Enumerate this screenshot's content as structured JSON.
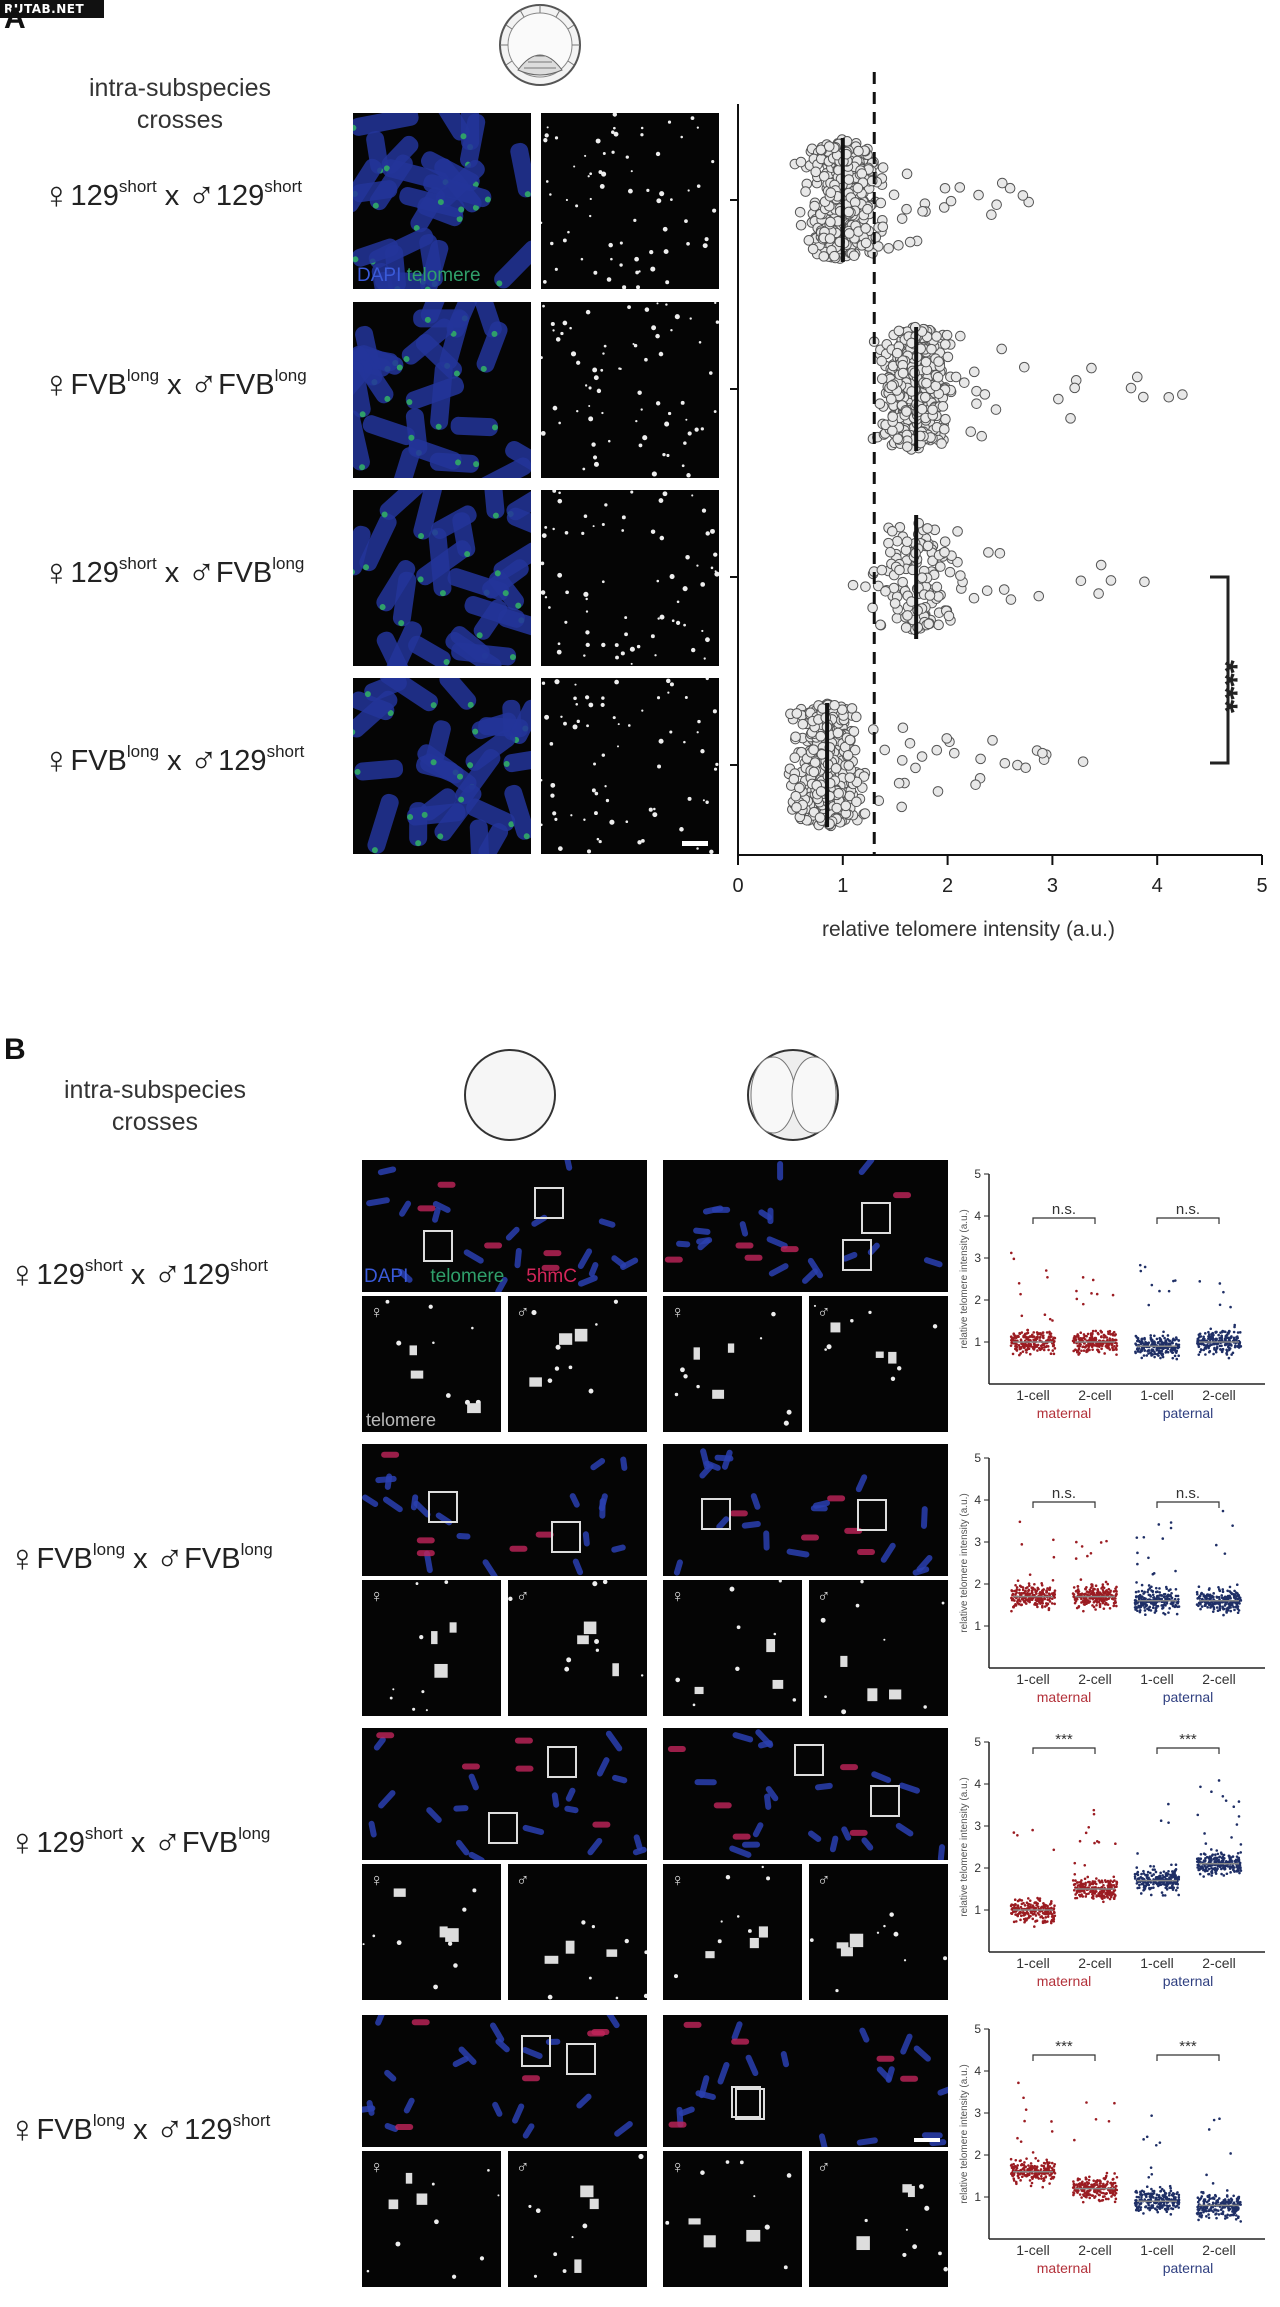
{
  "watermark": "RUTAB.NET",
  "panelA": {
    "letter": "A",
    "heading": "intra-subspecies\ncrosses",
    "crosses": [
      {
        "female": "129",
        "female_sup": "short",
        "male": "129",
        "male_sup": "short"
      },
      {
        "female": "FVB",
        "female_sup": "long",
        "male": "FVB",
        "male_sup": "long"
      },
      {
        "female": "129",
        "female_sup": "short",
        "male": "FVB",
        "male_sup": "long"
      },
      {
        "female": "FVB",
        "female_sup": "long",
        "male": "129",
        "male_sup": "short"
      }
    ],
    "legend": {
      "dapi": "DAPI",
      "telomere": "telomere"
    },
    "significance": "****"
  },
  "panelB": {
    "letter": "B",
    "heading": "intra-subspecies\ncrosses",
    "legend": {
      "dapi": "DAPI",
      "telomere": "telomere",
      "hmc": "5hmC"
    },
    "inset_label": "telomere",
    "female_symbol": "♀",
    "male_symbol": "♂",
    "rows": [
      {
        "female": "129",
        "female_sup": "short",
        "male": "129",
        "male_sup": "short",
        "sig_maternal": "n.s.",
        "sig_paternal": "n.s."
      },
      {
        "female": "FVB",
        "female_sup": "long",
        "male": "FVB",
        "male_sup": "long",
        "sig_maternal": "n.s.",
        "sig_paternal": "n.s."
      },
      {
        "female": "129",
        "female_sup": "short",
        "male": "FVB",
        "male_sup": "long",
        "sig_maternal": "***",
        "sig_paternal": "***"
      },
      {
        "female": "FVB",
        "female_sup": "long",
        "male": "129",
        "male_sup": "short",
        "sig_maternal": "***",
        "sig_paternal": "***"
      }
    ],
    "mini_chart": {
      "ylabel": "relative telomere intensity (a.u.)",
      "yticks": [
        "0",
        "1",
        "2",
        "3",
        "4",
        "5"
      ],
      "xcats": [
        "1-cell",
        "2-cell",
        "1-cell",
        "2-cell"
      ],
      "group_maternal": "maternal",
      "group_paternal": "paternal"
    }
  },
  "chart_data": [
    {
      "type": "scatter",
      "subtype": "swarm",
      "title": "",
      "xlabel": "relative telomere intensity (a.u.)",
      "ylabel": "",
      "xlim": [
        0,
        5
      ],
      "xticks": [
        0,
        1,
        2,
        3,
        4,
        5
      ],
      "reference_line_x": 1.3,
      "categories": [
        "♀129short x ♂129short",
        "♀FVBlong x ♂FVBlong",
        "♀129short x ♂FVBlong",
        "♀FVBlong x ♂129short"
      ],
      "medians": [
        1.0,
        1.7,
        1.7,
        0.85
      ],
      "max_values": [
        2.8,
        4.3,
        4.2,
        3.3
      ],
      "colors": {
        "points": "#555555",
        "fill": "#e8e8e8"
      }
    },
    {
      "type": "scatter",
      "subtype": "strip",
      "ylabel": "relative telomere intensity (a.u.)",
      "ylim": [
        0,
        5
      ],
      "categories": [
        "1-cell maternal",
        "2-cell maternal",
        "1-cell paternal",
        "2-cell paternal"
      ],
      "series": [
        {
          "name": "♀129short x ♂129short",
          "medians": [
            1.0,
            1.0,
            0.9,
            1.0
          ]
        },
        {
          "name": "♀FVBlong x ♂FVBlong",
          "medians": [
            1.7,
            1.7,
            1.6,
            1.6
          ]
        },
        {
          "name": "♀129short x ♂FVBlong",
          "medians": [
            1.0,
            1.5,
            1.7,
            2.1
          ]
        },
        {
          "name": "♀FVBlong x ♂129short",
          "medians": [
            1.6,
            1.2,
            0.9,
            0.8
          ]
        }
      ],
      "colors": {
        "maternal": "#9b1c22",
        "paternal": "#1f2f66"
      }
    }
  ]
}
